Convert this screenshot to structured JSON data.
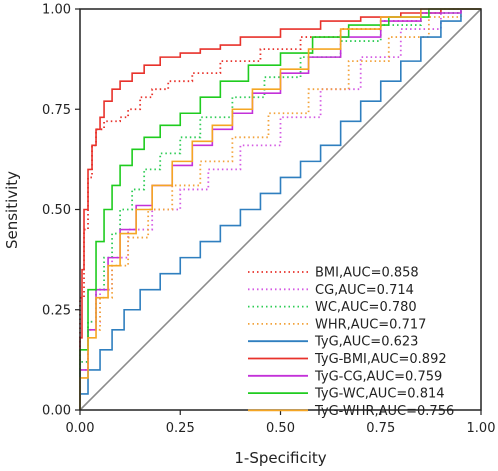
{
  "chart_data": {
    "type": "line",
    "title": "",
    "xlabel": "1-Specificity",
    "ylabel": "Sensitivity",
    "xlim": [
      0,
      1
    ],
    "ylim": [
      0,
      1
    ],
    "x_ticks": [
      "0.00",
      "0.25",
      "0.50",
      "0.75",
      "1.00"
    ],
    "y_ticks": [
      "0.00",
      "0.25",
      "0.50",
      "0.75",
      "1.00"
    ],
    "grid": false,
    "legend_position": "bottom-right",
    "reference_line": {
      "x": [
        0,
        1
      ],
      "y": [
        0,
        1
      ],
      "color": "#8c8c8c"
    },
    "series": [
      {
        "name": "BMI,AUC=0.858",
        "color": "#e8322b",
        "style": "dotted",
        "x": [
          0,
          0.01,
          0.02,
          0.03,
          0.04,
          0.06,
          0.08,
          0.1,
          0.12,
          0.15,
          0.18,
          0.22,
          0.28,
          0.35,
          0.45,
          0.55,
          0.65,
          0.75,
          0.85,
          0.95,
          1.0
        ],
        "y": [
          0,
          0.28,
          0.45,
          0.58,
          0.66,
          0.7,
          0.72,
          0.72,
          0.73,
          0.75,
          0.78,
          0.8,
          0.82,
          0.84,
          0.87,
          0.9,
          0.93,
          0.95,
          0.97,
          0.99,
          1.0
        ]
      },
      {
        "name": "CG,AUC=0.714",
        "color": "#d45ae3",
        "style": "dotted",
        "x": [
          0,
          0.02,
          0.05,
          0.08,
          0.12,
          0.18,
          0.25,
          0.32,
          0.4,
          0.5,
          0.6,
          0.7,
          0.8,
          0.9,
          1.0
        ],
        "y": [
          0,
          0.12,
          0.22,
          0.3,
          0.38,
          0.45,
          0.5,
          0.55,
          0.6,
          0.66,
          0.73,
          0.8,
          0.88,
          0.95,
          1.0
        ]
      },
      {
        "name": "WC,AUC=0.780",
        "color": "#2ecc55",
        "style": "dotted",
        "x": [
          0,
          0.02,
          0.04,
          0.06,
          0.08,
          0.1,
          0.13,
          0.16,
          0.2,
          0.25,
          0.3,
          0.38,
          0.46,
          0.55,
          0.65,
          0.75,
          0.85,
          0.95,
          1.0
        ],
        "y": [
          0,
          0.12,
          0.22,
          0.3,
          0.38,
          0.44,
          0.5,
          0.55,
          0.6,
          0.64,
          0.68,
          0.73,
          0.78,
          0.83,
          0.88,
          0.92,
          0.96,
          0.99,
          1.0
        ]
      },
      {
        "name": "WHR,AUC=0.717",
        "color": "#f2a23a",
        "style": "dotted",
        "x": [
          0,
          0.02,
          0.05,
          0.08,
          0.12,
          0.17,
          0.23,
          0.3,
          0.38,
          0.47,
          0.57,
          0.67,
          0.77,
          0.87,
          0.95,
          1.0
        ],
        "y": [
          0,
          0.1,
          0.2,
          0.28,
          0.36,
          0.43,
          0.5,
          0.56,
          0.62,
          0.68,
          0.74,
          0.8,
          0.87,
          0.93,
          0.98,
          1.0
        ]
      },
      {
        "name": "TyG,AUC=0.623",
        "color": "#2f7fbf",
        "style": "solid",
        "x": [
          0,
          0.02,
          0.05,
          0.08,
          0.11,
          0.15,
          0.2,
          0.25,
          0.3,
          0.35,
          0.4,
          0.45,
          0.5,
          0.55,
          0.6,
          0.65,
          0.7,
          0.75,
          0.8,
          0.85,
          0.9,
          0.95,
          1.0
        ],
        "y": [
          0,
          0.04,
          0.1,
          0.15,
          0.2,
          0.25,
          0.3,
          0.34,
          0.38,
          0.42,
          0.46,
          0.5,
          0.54,
          0.58,
          0.62,
          0.66,
          0.72,
          0.77,
          0.82,
          0.87,
          0.93,
          0.97,
          1.0
        ]
      },
      {
        "name": "TyG-BMI,AUC=0.892",
        "color": "#e8322b",
        "style": "solid",
        "x": [
          0,
          0.005,
          0.01,
          0.02,
          0.03,
          0.04,
          0.05,
          0.06,
          0.08,
          0.1,
          0.13,
          0.16,
          0.2,
          0.25,
          0.3,
          0.35,
          0.4,
          0.5,
          0.6,
          0.7,
          0.8,
          0.9,
          0.95,
          1.0
        ],
        "y": [
          0,
          0.18,
          0.35,
          0.5,
          0.6,
          0.66,
          0.7,
          0.73,
          0.77,
          0.8,
          0.82,
          0.84,
          0.86,
          0.88,
          0.89,
          0.9,
          0.91,
          0.93,
          0.95,
          0.97,
          0.98,
          0.99,
          1.0,
          1.0
        ]
      },
      {
        "name": "TyG-CG,AUC=0.759",
        "color": "#c331d9",
        "style": "solid",
        "x": [
          0,
          0.02,
          0.04,
          0.07,
          0.1,
          0.14,
          0.18,
          0.23,
          0.28,
          0.33,
          0.38,
          0.43,
          0.5,
          0.57,
          0.65,
          0.75,
          0.85,
          0.95,
          1.0
        ],
        "y": [
          0,
          0.1,
          0.2,
          0.3,
          0.38,
          0.45,
          0.51,
          0.56,
          0.61,
          0.66,
          0.7,
          0.74,
          0.79,
          0.84,
          0.88,
          0.93,
          0.97,
          0.99,
          1.0
        ]
      },
      {
        "name": "TyG-WC,AUC=0.814",
        "color": "#1fcc1f",
        "style": "solid",
        "x": [
          0,
          0.02,
          0.04,
          0.06,
          0.08,
          0.1,
          0.13,
          0.16,
          0.2,
          0.25,
          0.3,
          0.35,
          0.42,
          0.5,
          0.58,
          0.67,
          0.77,
          0.87,
          0.95,
          1.0
        ],
        "y": [
          0,
          0.15,
          0.3,
          0.42,
          0.5,
          0.56,
          0.61,
          0.65,
          0.68,
          0.71,
          0.74,
          0.78,
          0.82,
          0.86,
          0.89,
          0.93,
          0.96,
          0.98,
          1.0,
          1.0
        ]
      },
      {
        "name": "TyG-WHR,AUC=0.756",
        "color": "#f5a623",
        "style": "solid",
        "x": [
          0,
          0.02,
          0.04,
          0.07,
          0.1,
          0.14,
          0.18,
          0.23,
          0.28,
          0.33,
          0.38,
          0.43,
          0.5,
          0.57,
          0.65,
          0.75,
          0.85,
          0.95,
          1.0
        ],
        "y": [
          0,
          0.08,
          0.18,
          0.28,
          0.36,
          0.44,
          0.5,
          0.56,
          0.62,
          0.67,
          0.71,
          0.75,
          0.8,
          0.85,
          0.9,
          0.95,
          0.98,
          1.0,
          1.0
        ]
      }
    ]
  }
}
